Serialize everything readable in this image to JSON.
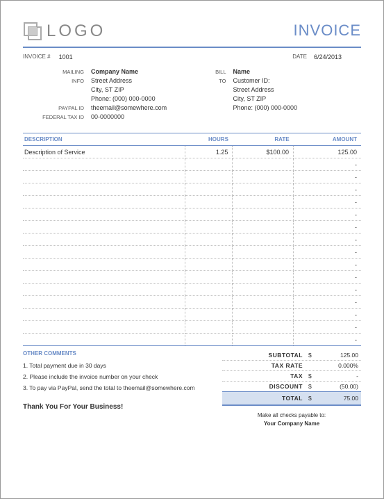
{
  "colors": {
    "accent": "#6a8cc7",
    "total_bg": "#d5e0f0"
  },
  "header": {
    "logo_text": "LOGO",
    "title": "INVOICE"
  },
  "meta": {
    "invoice_label": "INVOICE #",
    "invoice_number": "1001",
    "date_label": "DATE",
    "date_value": "6/24/2013"
  },
  "mailing": {
    "label_line1": "MAILING",
    "label_line2": "INFO",
    "company": "Company Name",
    "street": "Street Address",
    "citystzip": "City, ST  ZIP",
    "phone": "Phone: (000) 000-0000",
    "paypal_label": "PAYPAL ID",
    "paypal_value": "theemail@somewhere.com",
    "fedtax_label": "FEDERAL TAX ID",
    "fedtax_value": "00-0000000"
  },
  "billto": {
    "label_line1": "BILL",
    "label_line2": "TO",
    "name": "Name",
    "customer_id": "Customer ID:",
    "street": "Street Address",
    "citystzip": "City, ST  ZIP",
    "phone": "Phone: (000) 000-0000"
  },
  "table": {
    "headers": {
      "desc": "DESCRIPTION",
      "hours": "HOURS",
      "rate": "RATE",
      "amount": "AMOUNT"
    },
    "row_count": 16,
    "rows": [
      {
        "desc": "Description of Service",
        "hours": "1.25",
        "rate": "$100.00",
        "amount": "125.00"
      }
    ],
    "empty_amount": "-"
  },
  "comments": {
    "title": "OTHER COMMENTS",
    "items": [
      "1. Total payment due in 30 days",
      "2. Please include the invoice number on your check",
      "3. To pay via PayPal, send the total to theemail@somewhere.com"
    ]
  },
  "totals": {
    "subtotal_label": "SUBTOTAL",
    "subtotal_value": "125.00",
    "taxrate_label": "TAX RATE",
    "taxrate_value": "0.000%",
    "tax_label": "TAX",
    "tax_value": "-",
    "discount_label": "DISCOUNT",
    "discount_value": "(50.00)",
    "total_label": "TOTAL",
    "total_value": "75.00",
    "currency": "$"
  },
  "footer": {
    "payable_line1": "Make all checks payable to:",
    "payable_line2": "Your Company Name",
    "thanks": "Thank You For Your Business!"
  }
}
